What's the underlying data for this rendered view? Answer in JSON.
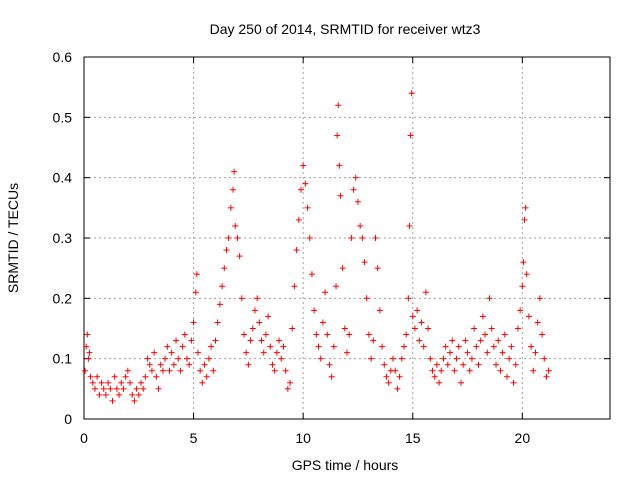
{
  "chart_data": {
    "type": "scatter",
    "title": "Day 250 of 2014, SRMTID for receiver wtz3",
    "xlabel": "GPS time / hours",
    "ylabel": "SRMTID / TECUs",
    "xlim": [
      0,
      24
    ],
    "ylim": [
      0,
      0.6
    ],
    "xticks": [
      0,
      5,
      10,
      15,
      20
    ],
    "xtick_labels": [
      "0",
      "5",
      "10",
      "15",
      "20"
    ],
    "yticks": [
      0,
      0.1,
      0.2,
      0.3,
      0.4,
      0.5,
      0.6
    ],
    "ytick_labels": [
      "0",
      "0.1",
      "0.2",
      "0.3",
      "0.4",
      "0.5",
      "0.6"
    ],
    "grid": true,
    "marker": "plus",
    "color": "#ff0000",
    "series": [
      {
        "name": "SRMTID",
        "points": [
          [
            0.05,
            0.08
          ],
          [
            0.1,
            0.12
          ],
          [
            0.15,
            0.14
          ],
          [
            0.2,
            0.1
          ],
          [
            0.25,
            0.11
          ],
          [
            0.3,
            0.07
          ],
          [
            0.4,
            0.06
          ],
          [
            0.5,
            0.05
          ],
          [
            0.6,
            0.07
          ],
          [
            0.7,
            0.04
          ],
          [
            0.8,
            0.06
          ],
          [
            0.9,
            0.05
          ],
          [
            1.0,
            0.04
          ],
          [
            1.1,
            0.06
          ],
          [
            1.2,
            0.05
          ],
          [
            1.3,
            0.03
          ],
          [
            1.4,
            0.07
          ],
          [
            1.5,
            0.05
          ],
          [
            1.6,
            0.04
          ],
          [
            1.7,
            0.06
          ],
          [
            1.8,
            0.05
          ],
          [
            1.9,
            0.07
          ],
          [
            2.0,
            0.08
          ],
          [
            2.1,
            0.06
          ],
          [
            2.2,
            0.04
          ],
          [
            2.3,
            0.03
          ],
          [
            2.4,
            0.05
          ],
          [
            2.5,
            0.04
          ],
          [
            2.6,
            0.06
          ],
          [
            2.7,
            0.05
          ],
          [
            2.8,
            0.07
          ],
          [
            2.9,
            0.1
          ],
          [
            3.0,
            0.09
          ],
          [
            3.1,
            0.08
          ],
          [
            3.2,
            0.11
          ],
          [
            3.3,
            0.07
          ],
          [
            3.4,
            0.05
          ],
          [
            3.5,
            0.09
          ],
          [
            3.6,
            0.08
          ],
          [
            3.7,
            0.1
          ],
          [
            3.8,
            0.12
          ],
          [
            3.9,
            0.08
          ],
          [
            4.0,
            0.11
          ],
          [
            4.1,
            0.09
          ],
          [
            4.2,
            0.13
          ],
          [
            4.3,
            0.1
          ],
          [
            4.4,
            0.08
          ],
          [
            4.5,
            0.12
          ],
          [
            4.6,
            0.14
          ],
          [
            4.7,
            0.1
          ],
          [
            4.8,
            0.09
          ],
          [
            4.9,
            0.13
          ],
          [
            5.0,
            0.16
          ],
          [
            5.1,
            0.21
          ],
          [
            5.15,
            0.24
          ],
          [
            5.2,
            0.11
          ],
          [
            5.3,
            0.08
          ],
          [
            5.4,
            0.06
          ],
          [
            5.5,
            0.09
          ],
          [
            5.6,
            0.07
          ],
          [
            5.7,
            0.1
          ],
          [
            5.8,
            0.12
          ],
          [
            5.9,
            0.08
          ],
          [
            6.0,
            0.13
          ],
          [
            6.1,
            0.16
          ],
          [
            6.2,
            0.19
          ],
          [
            6.3,
            0.22
          ],
          [
            6.4,
            0.25
          ],
          [
            6.5,
            0.28
          ],
          [
            6.6,
            0.3
          ],
          [
            6.7,
            0.35
          ],
          [
            6.8,
            0.38
          ],
          [
            6.85,
            0.41
          ],
          [
            6.9,
            0.32
          ],
          [
            7.0,
            0.3
          ],
          [
            7.1,
            0.27
          ],
          [
            7.2,
            0.2
          ],
          [
            7.3,
            0.14
          ],
          [
            7.4,
            0.11
          ],
          [
            7.5,
            0.09
          ],
          [
            7.6,
            0.13
          ],
          [
            7.7,
            0.15
          ],
          [
            7.8,
            0.18
          ],
          [
            7.9,
            0.2
          ],
          [
            8.0,
            0.16
          ],
          [
            8.1,
            0.13
          ],
          [
            8.2,
            0.11
          ],
          [
            8.3,
            0.14
          ],
          [
            8.4,
            0.17
          ],
          [
            8.5,
            0.12
          ],
          [
            8.6,
            0.09
          ],
          [
            8.7,
            0.08
          ],
          [
            8.8,
            0.11
          ],
          [
            8.9,
            0.13
          ],
          [
            9.0,
            0.1
          ],
          [
            9.1,
            0.12
          ],
          [
            9.2,
            0.08
          ],
          [
            9.3,
            0.05
          ],
          [
            9.4,
            0.06
          ],
          [
            9.5,
            0.15
          ],
          [
            9.6,
            0.22
          ],
          [
            9.7,
            0.28
          ],
          [
            9.8,
            0.33
          ],
          [
            9.9,
            0.38
          ],
          [
            10.0,
            0.42
          ],
          [
            10.1,
            0.39
          ],
          [
            10.2,
            0.35
          ],
          [
            10.3,
            0.3
          ],
          [
            10.4,
            0.24
          ],
          [
            10.5,
            0.18
          ],
          [
            10.6,
            0.14
          ],
          [
            10.7,
            0.12
          ],
          [
            10.8,
            0.1
          ],
          [
            10.9,
            0.16
          ],
          [
            11.0,
            0.21
          ],
          [
            11.1,
            0.14
          ],
          [
            11.2,
            0.09
          ],
          [
            11.3,
            0.07
          ],
          [
            11.4,
            0.12
          ],
          [
            11.5,
            0.22
          ],
          [
            11.55,
            0.47
          ],
          [
            11.6,
            0.52
          ],
          [
            11.65,
            0.42
          ],
          [
            11.7,
            0.37
          ],
          [
            11.8,
            0.25
          ],
          [
            11.9,
            0.15
          ],
          [
            12.0,
            0.11
          ],
          [
            12.1,
            0.14
          ],
          [
            12.2,
            0.3
          ],
          [
            12.3,
            0.38
          ],
          [
            12.4,
            0.4
          ],
          [
            12.5,
            0.36
          ],
          [
            12.6,
            0.32
          ],
          [
            12.7,
            0.3
          ],
          [
            12.8,
            0.26
          ],
          [
            12.9,
            0.2
          ],
          [
            13.0,
            0.14
          ],
          [
            13.1,
            0.1
          ],
          [
            13.2,
            0.13
          ],
          [
            13.3,
            0.3
          ],
          [
            13.4,
            0.25
          ],
          [
            13.5,
            0.18
          ],
          [
            13.6,
            0.12
          ],
          [
            13.7,
            0.09
          ],
          [
            13.8,
            0.07
          ],
          [
            13.9,
            0.06
          ],
          [
            14.0,
            0.08
          ],
          [
            14.1,
            0.1
          ],
          [
            14.2,
            0.08
          ],
          [
            14.3,
            0.05
          ],
          [
            14.4,
            0.07
          ],
          [
            14.5,
            0.1
          ],
          [
            14.6,
            0.12
          ],
          [
            14.7,
            0.14
          ],
          [
            14.8,
            0.2
          ],
          [
            14.85,
            0.32
          ],
          [
            14.9,
            0.47
          ],
          [
            14.95,
            0.54
          ],
          [
            15.0,
            0.17
          ],
          [
            15.1,
            0.15
          ],
          [
            15.2,
            0.18
          ],
          [
            15.3,
            0.13
          ],
          [
            15.4,
            0.16
          ],
          [
            15.5,
            0.12
          ],
          [
            15.6,
            0.21
          ],
          [
            15.7,
            0.15
          ],
          [
            15.8,
            0.1
          ],
          [
            15.9,
            0.08
          ],
          [
            16.0,
            0.07
          ],
          [
            16.1,
            0.09
          ],
          [
            16.2,
            0.06
          ],
          [
            16.3,
            0.08
          ],
          [
            16.4,
            0.1
          ],
          [
            16.5,
            0.12
          ],
          [
            16.6,
            0.09
          ],
          [
            16.7,
            0.11
          ],
          [
            16.8,
            0.13
          ],
          [
            16.9,
            0.08
          ],
          [
            17.0,
            0.1
          ],
          [
            17.1,
            0.12
          ],
          [
            17.2,
            0.06
          ],
          [
            17.3,
            0.09
          ],
          [
            17.4,
            0.13
          ],
          [
            17.5,
            0.11
          ],
          [
            17.6,
            0.08
          ],
          [
            17.7,
            0.1
          ],
          [
            17.8,
            0.15
          ],
          [
            17.9,
            0.12
          ],
          [
            18.0,
            0.09
          ],
          [
            18.1,
            0.13
          ],
          [
            18.2,
            0.17
          ],
          [
            18.3,
            0.14
          ],
          [
            18.4,
            0.11
          ],
          [
            18.5,
            0.2
          ],
          [
            18.6,
            0.15
          ],
          [
            18.7,
            0.12
          ],
          [
            18.8,
            0.09
          ],
          [
            18.9,
            0.13
          ],
          [
            19.0,
            0.08
          ],
          [
            19.1,
            0.11
          ],
          [
            19.2,
            0.14
          ],
          [
            19.3,
            0.07
          ],
          [
            19.4,
            0.1
          ],
          [
            19.5,
            0.12
          ],
          [
            19.6,
            0.06
          ],
          [
            19.7,
            0.09
          ],
          [
            19.8,
            0.15
          ],
          [
            19.9,
            0.18
          ],
          [
            20.0,
            0.22
          ],
          [
            20.05,
            0.26
          ],
          [
            20.1,
            0.33
          ],
          [
            20.15,
            0.35
          ],
          [
            20.2,
            0.24
          ],
          [
            20.3,
            0.17
          ],
          [
            20.4,
            0.12
          ],
          [
            20.5,
            0.08
          ],
          [
            20.6,
            0.11
          ],
          [
            20.7,
            0.16
          ],
          [
            20.8,
            0.2
          ],
          [
            20.9,
            0.14
          ],
          [
            21.0,
            0.1
          ],
          [
            21.1,
            0.07
          ],
          [
            21.2,
            0.08
          ]
        ]
      }
    ]
  }
}
